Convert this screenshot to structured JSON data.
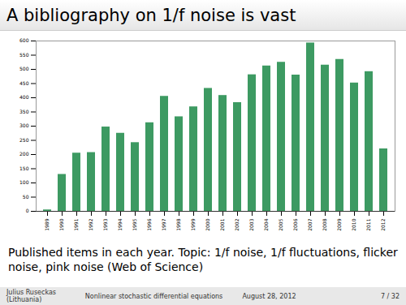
{
  "chart_data": {
    "type": "bar",
    "title": "A bibliography on 1/f noise is vast",
    "caption": "Published items in each year. Topic: 1/f noise, 1/f fluctuations, flicker noise, pink noise (Web of Science)",
    "footer": [
      "Julius Ruseckas (Lithuania)",
      "Nonlinear stochastic differential equations",
      "August 28, 2012",
      "7 / 32"
    ],
    "categories": [
      "1989",
      "1990",
      "1991",
      "1992",
      "1993",
      "1994",
      "1995",
      "1996",
      "1997",
      "1998",
      "1999",
      "2000",
      "2001",
      "2002",
      "2003",
      "2004",
      "2005",
      "2006",
      "2007",
      "2008",
      "2009",
      "2010",
      "2011",
      "2012"
    ],
    "values": [
      5,
      130,
      205,
      207,
      297,
      275,
      242,
      312,
      405,
      333,
      368,
      433,
      408,
      383,
      481,
      512,
      525,
      480,
      593,
      515,
      535,
      452,
      492,
      220
    ],
    "color": "#3d9a62",
    "ylim": [
      0,
      600
    ],
    "yticks": [
      0,
      50,
      100,
      150,
      200,
      250,
      300,
      350,
      400,
      450,
      500,
      550,
      600
    ],
    "grid": false
  }
}
